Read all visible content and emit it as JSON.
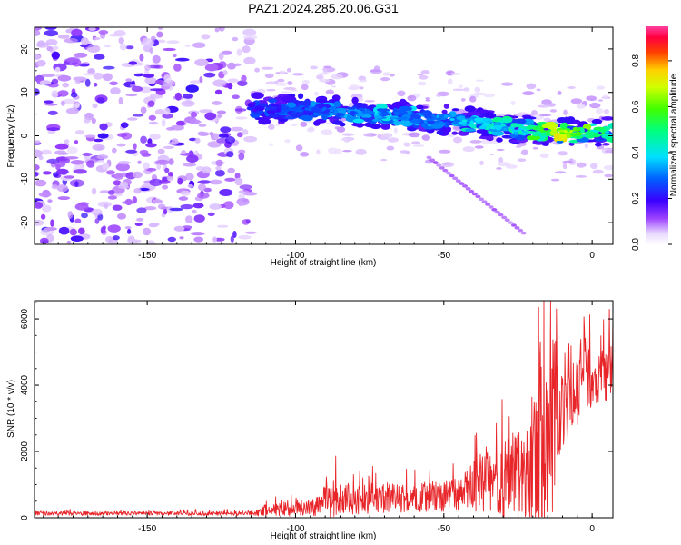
{
  "title": "PAZ1.2024.285.20.06.G31",
  "colors": {
    "snr_line": "#e8262a",
    "ridge_core": "#00a0ff",
    "noise": "#8a2be2"
  },
  "chart_data": [
    {
      "type": "heatmap",
      "xlabel": "Height of straight line (km)",
      "ylabel": "Frequency (Hz)",
      "xlim": [
        -188,
        7
      ],
      "ylim": [
        -25,
        25
      ],
      "x_ticks": [
        -150,
        -100,
        -50,
        0
      ],
      "x_tick_labels": [
        "-150",
        "-100",
        "-50",
        "0"
      ],
      "y_ticks": [
        20,
        10,
        0,
        -10,
        -20
      ],
      "y_tick_labels": [
        "20",
        "10",
        "0",
        "-10",
        "-20"
      ],
      "grid": false,
      "colorbar": {
        "label": "Normalized spectral amplitude",
        "range": [
          0,
          0.95
        ],
        "ticks": [
          0.0,
          0.2,
          0.4,
          0.6,
          0.8
        ],
        "tick_labels": [
          "0.0",
          "0.2",
          "0.4",
          "0.6",
          "0.8"
        ],
        "colormap": "rainbow (white → purple → blue → cyan → green → yellow → red → magenta)"
      },
      "ridge": {
        "x": [
          -115,
          -100,
          -85,
          -70,
          -55,
          -40,
          -25,
          -10,
          0,
          7
        ],
        "frequency": [
          6.5,
          6.0,
          5.5,
          5.0,
          4.0,
          3.0,
          1.5,
          0.5,
          0.8,
          1.0
        ],
        "amplitude": [
          0.25,
          0.3,
          0.35,
          0.4,
          0.35,
          0.45,
          0.5,
          0.8,
          0.6,
          0.5
        ]
      },
      "noise_region": {
        "x": [
          -188,
          -115
        ],
        "amplitude": 0.15
      }
    },
    {
      "type": "line",
      "xlabel": "Height of straight line (km)",
      "ylabel": "SNR (10 * v/v)",
      "xlim": [
        -188,
        7
      ],
      "ylim": [
        0,
        6550
      ],
      "x_ticks": [
        -150,
        -100,
        -50,
        0
      ],
      "x_tick_labels": [
        "-150",
        "-100",
        "-50",
        "0"
      ],
      "y_ticks": [
        0,
        2000,
        4000,
        6000
      ],
      "y_tick_labels": [
        "0",
        "2000",
        "4000",
        "6000"
      ],
      "grid": false,
      "envelope": {
        "x": [
          -188,
          -120,
          -115,
          -110,
          -100,
          -92,
          -90,
          -80,
          -60,
          -45,
          -38,
          -30,
          -25,
          -20,
          -18,
          -15,
          -13,
          -10,
          -5,
          0,
          5,
          7
        ],
        "mid": [
          130,
          130,
          140,
          220,
          300,
          350,
          600,
          550,
          600,
          700,
          1000,
          1100,
          1300,
          1400,
          2000,
          2200,
          3000,
          3500,
          4000,
          4200,
          4400,
          4600
        ],
        "amp": [
          60,
          60,
          80,
          180,
          250,
          300,
          700,
          450,
          450,
          500,
          900,
          1200,
          1400,
          1600,
          3500,
          2500,
          2800,
          1800,
          1200,
          900,
          900,
          1100
        ]
      },
      "peaks": [
        {
          "x": -39,
          "y": 2550
        },
        {
          "x": -28,
          "y": 3050
        },
        {
          "x": -18,
          "y": 6350
        },
        {
          "x": -14,
          "y": 6550
        },
        {
          "x": -12,
          "y": 6300
        },
        {
          "x": 7,
          "y": 6050
        }
      ]
    }
  ]
}
